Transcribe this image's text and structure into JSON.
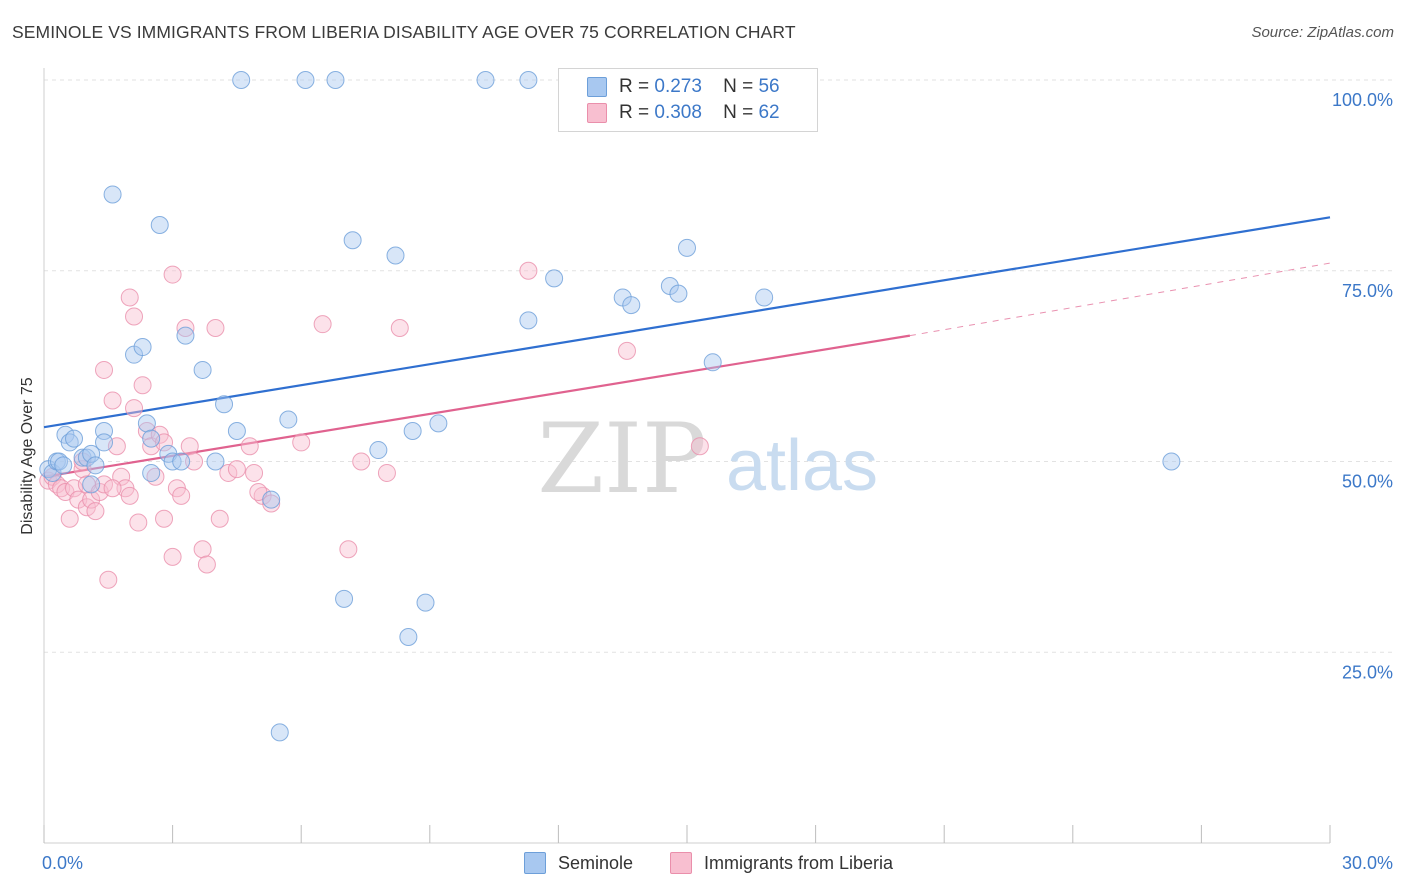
{
  "title": "SEMINOLE VS IMMIGRANTS FROM LIBERIA DISABILITY AGE OVER 75 CORRELATION CHART",
  "source": "Source: ZipAtlas.com",
  "watermark": {
    "zip": "ZIP",
    "atlas": "atlas"
  },
  "legend": {
    "rows": [
      {
        "r_label": "R =",
        "r_value": "0.273",
        "n_label": "N =",
        "n_value": "56",
        "color": "#a8c8f0",
        "border": "#6d9fd9"
      },
      {
        "r_label": "R =",
        "r_value": "0.308",
        "n_label": "N =",
        "n_value": "62",
        "color": "#f8bfd0",
        "border": "#ea8fab"
      }
    ]
  },
  "bottom_legend": [
    "Seminole",
    "Immigrants from Liberia"
  ],
  "chart_data": {
    "type": "scatter",
    "title": "SEMINOLE VS IMMIGRANTS FROM LIBERIA DISABILITY AGE OVER 75 CORRELATION CHART",
    "xlabel": "",
    "ylabel": "Disability Age Over 75",
    "xlim": [
      0,
      30
    ],
    "ylim": [
      0,
      100
    ],
    "x_tick_labels": [
      "0.0%",
      "30.0%"
    ],
    "y_tick_labels": [
      "25.0%",
      "50.0%",
      "75.0%",
      "100.0%"
    ],
    "y_ticks": [
      25,
      50,
      75,
      100
    ],
    "grid": true,
    "colors": {
      "seminole": "#6d9fd9",
      "seminole_fill": "#a8c8f0",
      "seminole_line": "#2f6fd0",
      "liberia": "#ea8fab",
      "liberia_fill": "#f8bfd0",
      "liberia_line": "#e0628f",
      "axis_text": "#3c78c8"
    },
    "series": [
      {
        "name": "Seminole",
        "trend": {
          "x": [
            0,
            30
          ],
          "y": [
            54.5,
            82
          ]
        },
        "points": [
          [
            0.1,
            49
          ],
          [
            0.2,
            48.5
          ],
          [
            0.3,
            50
          ],
          [
            0.5,
            53.5
          ],
          [
            0.6,
            52.5
          ],
          [
            0.7,
            53
          ],
          [
            0.9,
            50.5
          ],
          [
            1.0,
            50.5
          ],
          [
            1.1,
            51
          ],
          [
            1.1,
            47
          ],
          [
            1.4,
            54
          ],
          [
            1.4,
            52.5
          ],
          [
            1.6,
            85
          ],
          [
            2.1,
            64
          ],
          [
            2.3,
            65
          ],
          [
            2.4,
            55
          ],
          [
            2.5,
            48.5
          ],
          [
            2.7,
            81
          ],
          [
            2.9,
            51
          ],
          [
            3.0,
            50
          ],
          [
            3.3,
            66.5
          ],
          [
            3.7,
            62
          ],
          [
            4.0,
            50
          ],
          [
            4.2,
            57.5
          ],
          [
            4.5,
            54
          ],
          [
            4.6,
            100
          ],
          [
            5.3,
            45
          ],
          [
            5.5,
            14.5
          ],
          [
            5.7,
            55.5
          ],
          [
            6.1,
            100
          ],
          [
            6.8,
            100
          ],
          [
            7.0,
            32
          ],
          [
            7.2,
            79
          ],
          [
            7.8,
            51.5
          ],
          [
            8.2,
            77
          ],
          [
            8.5,
            27
          ],
          [
            8.6,
            54
          ],
          [
            8.9,
            31.5
          ],
          [
            9.2,
            55
          ],
          [
            10.3,
            100
          ],
          [
            11.3,
            100
          ],
          [
            11.3,
            68.5
          ],
          [
            11.9,
            74
          ],
          [
            13.5,
            71.5
          ],
          [
            13.7,
            70.5
          ],
          [
            14.6,
            73
          ],
          [
            14.8,
            72
          ],
          [
            15.0,
            78
          ],
          [
            15.6,
            63
          ],
          [
            16.8,
            71.5
          ],
          [
            26.3,
            50
          ],
          [
            0.35,
            50
          ],
          [
            0.45,
            49.5
          ],
          [
            1.2,
            49.5
          ],
          [
            2.5,
            53
          ],
          [
            3.2,
            50
          ]
        ]
      },
      {
        "name": "Immigrants from Liberia",
        "trend": {
          "x": [
            0,
            20.2
          ],
          "y": [
            48,
            66.5
          ]
        },
        "trend_ext": {
          "x": [
            20.2,
            30
          ],
          "y": [
            66.5,
            76
          ]
        },
        "points": [
          [
            0.1,
            47.5
          ],
          [
            0.2,
            48
          ],
          [
            0.3,
            47
          ],
          [
            0.4,
            46.5
          ],
          [
            0.5,
            46
          ],
          [
            0.6,
            42.5
          ],
          [
            0.7,
            46.5
          ],
          [
            0.8,
            45
          ],
          [
            0.9,
            49
          ],
          [
            1.0,
            44
          ],
          [
            1.0,
            47
          ],
          [
            1.1,
            45
          ],
          [
            1.2,
            43.5
          ],
          [
            1.3,
            46
          ],
          [
            1.4,
            47
          ],
          [
            1.5,
            34.5
          ],
          [
            1.6,
            58
          ],
          [
            1.7,
            52
          ],
          [
            1.8,
            48
          ],
          [
            1.9,
            46.5
          ],
          [
            2.0,
            45.5
          ],
          [
            2.1,
            57
          ],
          [
            2.2,
            42
          ],
          [
            2.3,
            60
          ],
          [
            2.4,
            54
          ],
          [
            2.5,
            52
          ],
          [
            2.6,
            48
          ],
          [
            2.7,
            53.5
          ],
          [
            2.8,
            42.5
          ],
          [
            3.0,
            37.5
          ],
          [
            3.1,
            46.5
          ],
          [
            3.2,
            45.5
          ],
          [
            3.3,
            67.5
          ],
          [
            3.4,
            52
          ],
          [
            3.5,
            50
          ],
          [
            3.7,
            38.5
          ],
          [
            3.8,
            36.5
          ],
          [
            4.0,
            67.5
          ],
          [
            4.1,
            42.5
          ],
          [
            4.3,
            48.5
          ],
          [
            4.5,
            49
          ],
          [
            4.8,
            52
          ],
          [
            4.9,
            48.5
          ],
          [
            5.1,
            45.5
          ],
          [
            5.3,
            44.5
          ],
          [
            6.0,
            52.5
          ],
          [
            6.5,
            68
          ],
          [
            7.1,
            38.5
          ],
          [
            7.4,
            50
          ],
          [
            8.0,
            48.5
          ],
          [
            8.3,
            67.5
          ],
          [
            11.3,
            75
          ],
          [
            13.6,
            64.5
          ],
          [
            15.3,
            52
          ],
          [
            1.4,
            62
          ],
          [
            2.0,
            71.5
          ],
          [
            2.1,
            69
          ],
          [
            3.0,
            74.5
          ],
          [
            1.6,
            46.5
          ],
          [
            0.9,
            50
          ],
          [
            2.8,
            52.5
          ],
          [
            5.0,
            46
          ]
        ]
      }
    ]
  }
}
